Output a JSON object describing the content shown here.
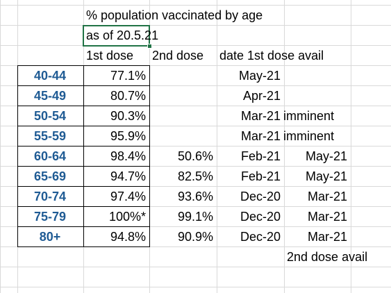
{
  "header": {
    "title": "% population vaccinated by age",
    "subtitle": "as of 20.5.21"
  },
  "table": {
    "columns": {
      "first": "1st dose",
      "second": "2nd dose",
      "date1": "date 1st dose avail"
    },
    "rows": [
      {
        "age": "40-44",
        "first": "77.1%",
        "date1": "May-21"
      },
      {
        "age": "45-49",
        "first": "80.7%",
        "date1": "Apr-21"
      },
      {
        "age": "50-54",
        "first": "90.3%",
        "date1": "Mar-21",
        "date2": "imminent"
      },
      {
        "age": "55-59",
        "first": "95.9%",
        "date1": "Mar-21",
        "date2": "imminent"
      },
      {
        "age": "60-64",
        "first": "98.4%",
        "second": "50.6%",
        "date1": "Feb-21",
        "date2": "May-21"
      },
      {
        "age": "65-69",
        "first": "94.7%",
        "second": "82.5%",
        "date1": "Feb-21",
        "date2": "May-21"
      },
      {
        "age": "70-74",
        "first": "97.4%",
        "second": "93.6%",
        "date1": "Dec-20",
        "date2": "Mar-21"
      },
      {
        "age": "75-79",
        "first": "100%*",
        "second": "99.1%",
        "date1": "Dec-20",
        "date2": "Mar-21"
      },
      {
        "age": "80+",
        "first": "94.8%",
        "second": "90.9%",
        "date1": "Dec-20",
        "date2": "Mar-21"
      }
    ],
    "footer": "2nd dose avail"
  }
}
